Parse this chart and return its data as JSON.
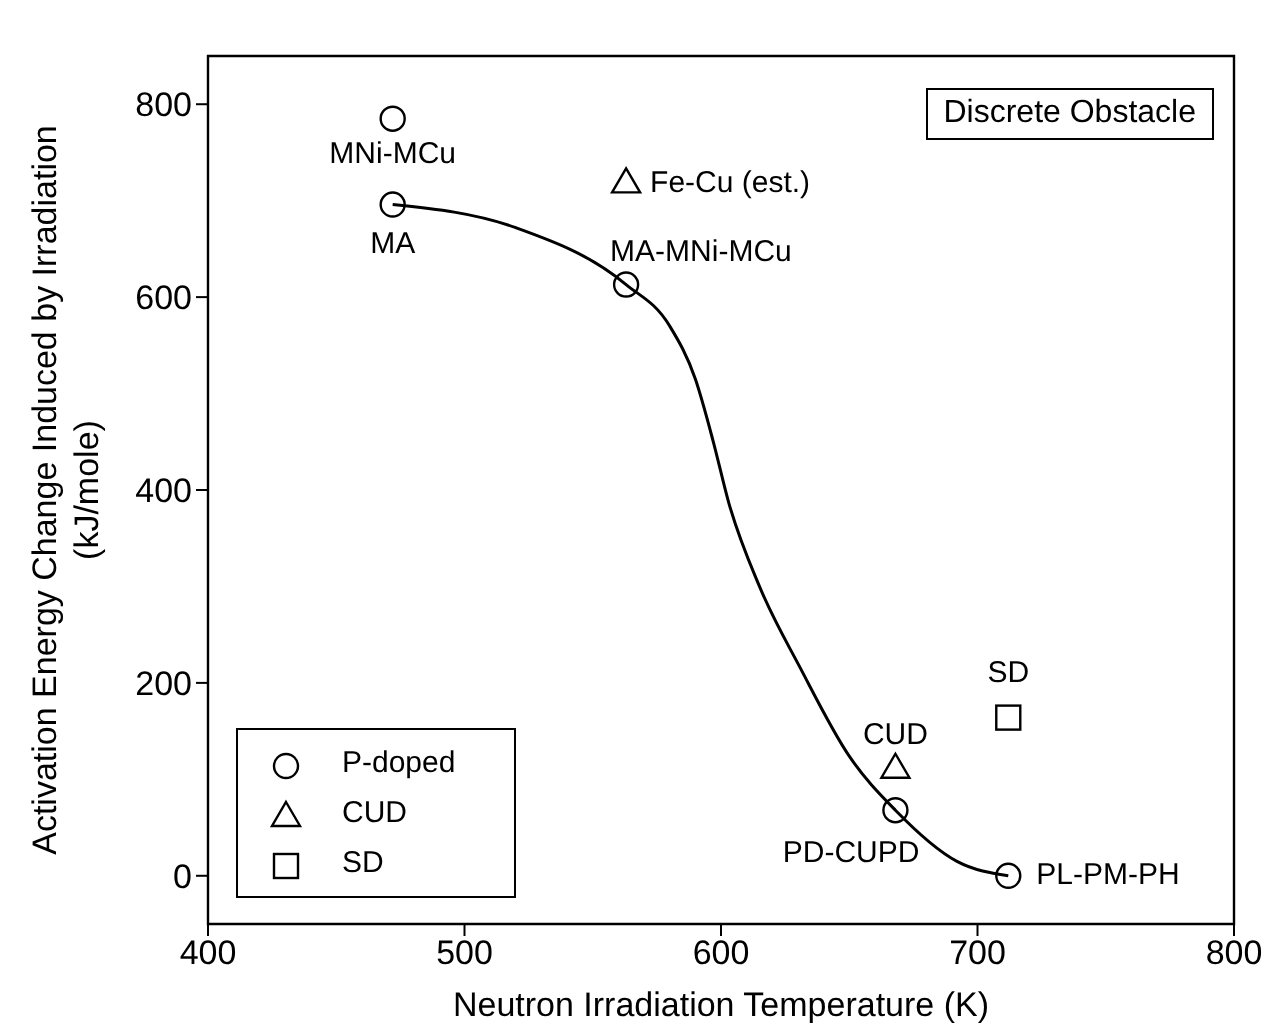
{
  "chart_data": {
    "type": "scatter",
    "xlabel": "Neutron Irradiation Temperature (K)",
    "ylabel": "Activation Energy Change Induced by Irradiation\n(kJ/mole)",
    "xlim": [
      400,
      800
    ],
    "xticks": [
      400,
      500,
      600,
      700,
      800
    ],
    "ylim": [
      -50,
      850
    ],
    "yticks": [
      0,
      200,
      400,
      600,
      800
    ],
    "legend": "bottom left",
    "series": [
      {
        "name": "P-doped",
        "marker": "circle",
        "color": "#000000",
        "x": [
          472,
          472,
          563,
          668,
          712
        ],
        "values": [
          785,
          696,
          613,
          68,
          0
        ]
      },
      {
        "name": "CUD",
        "marker": "triangle",
        "color": "#000000",
        "x": [
          563,
          668
        ],
        "values": [
          719,
          112
        ]
      },
      {
        "name": "SD",
        "marker": "square",
        "color": "#000000",
        "x": [
          712
        ],
        "values": [
          164
        ]
      },
      {
        "type": "line",
        "color": "#000000",
        "marker": "none",
        "x": [
          472,
          520,
          563,
          580,
          590,
          597,
          603,
          615,
          631,
          650,
          668,
          692,
          712
        ],
        "values": [
          696,
          672,
          613,
          570,
          515,
          450,
          387,
          300,
          215,
          124,
          68,
          15,
          0
        ]
      }
    ],
    "annotations": [
      {
        "text": "MNi-MCu",
        "x": 472,
        "y": 785
      },
      {
        "text": "MA",
        "x": 472,
        "y": 696
      },
      {
        "text": "MA-MNi-MCu",
        "x": 563,
        "y": 613
      },
      {
        "text": "Fe-Cu (est.)",
        "x": 563,
        "y": 719
      },
      {
        "text": "CUD",
        "x": 668,
        "y": 112
      },
      {
        "text": "SD",
        "x": 712,
        "y": 164
      },
      {
        "text": "PD-CUPD",
        "x": 668,
        "y": 68
      },
      {
        "text": "PL-PM-PH",
        "x": 712,
        "y": 0
      },
      "Discrete Obstacle"
    ]
  }
}
